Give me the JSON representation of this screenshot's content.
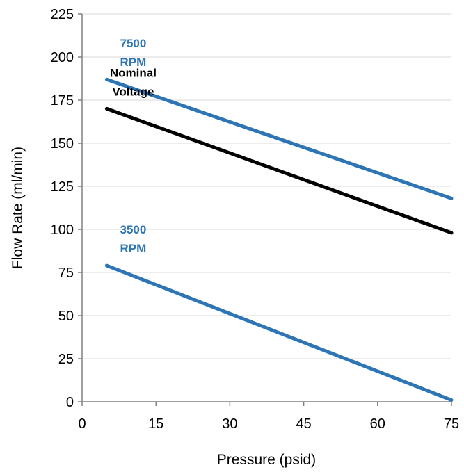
{
  "chart_data": {
    "type": "line",
    "title": "",
    "xlabel": "Pressure (psid)",
    "ylabel": "Flow Rate (ml/min)",
    "xlim": [
      0,
      75
    ],
    "ylim": [
      0,
      225
    ],
    "xticks": [
      0,
      15,
      30,
      45,
      60,
      75
    ],
    "yticks": [
      0,
      25,
      50,
      75,
      100,
      125,
      150,
      175,
      200,
      225
    ],
    "grid": "horizontal",
    "legend": "none",
    "series": [
      {
        "name": "7500 RPM",
        "label_lines": [
          "7500",
          "RPM"
        ],
        "color": "#2E75B6",
        "x": [
          5,
          75
        ],
        "y": [
          187,
          118
        ]
      },
      {
        "name": "Nominal Voltage",
        "label_lines": [
          "Nominal",
          "Voltage"
        ],
        "color": "#000000",
        "x": [
          5,
          75
        ],
        "y": [
          170,
          98
        ]
      },
      {
        "name": "3500 RPM",
        "label_lines": [
          "3500",
          "RPM"
        ],
        "color": "#2E75B6",
        "x": [
          5,
          75
        ],
        "y": [
          79,
          1
        ]
      }
    ]
  }
}
